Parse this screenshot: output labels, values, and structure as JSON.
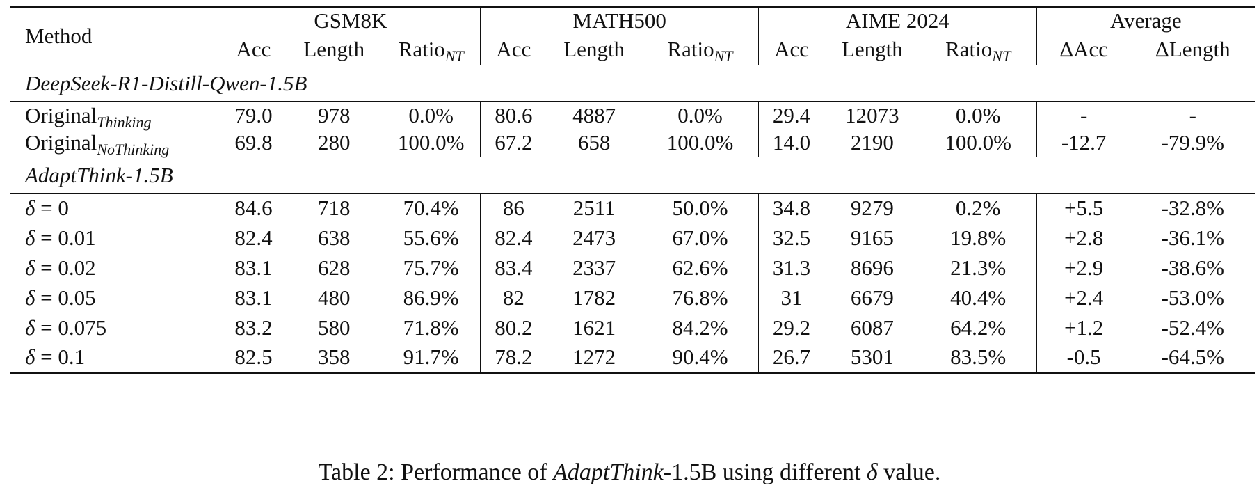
{
  "header": {
    "method_label": "Method",
    "groups": [
      "GSM8K",
      "MATH500",
      "AIME 2024",
      "Average"
    ],
    "acc": "Acc",
    "length": "Length",
    "ratio": "Ratio",
    "ratio_sub": "NT",
    "delta_acc": "ΔAcc",
    "delta_length": "ΔLength"
  },
  "sections": [
    {
      "title": "DeepSeek-R1-Distill-Qwen-1.5B",
      "rows": [
        {
          "label": "Original",
          "sub": "Thinking",
          "values": [
            "79.0",
            "978",
            "0.0%",
            "80.6",
            "4887",
            "0.0%",
            "29.4",
            "12073",
            "0.0%",
            "-",
            "-"
          ]
        },
        {
          "label": "Original",
          "sub": "NoThinking",
          "values": [
            "69.8",
            "280",
            "100.0%",
            "67.2",
            "658",
            "100.0%",
            "14.0",
            "2190",
            "100.0%",
            "-12.7",
            "-79.9%"
          ]
        }
      ]
    },
    {
      "title": "AdaptThink-1.5B",
      "rows": [
        {
          "delta": "δ",
          "eq": " = 0",
          "values": [
            "84.6",
            "718",
            "70.4%",
            "86",
            "2511",
            "50.0%",
            "34.8",
            "9279",
            "0.2%",
            "+5.5",
            "-32.8%"
          ]
        },
        {
          "delta": "δ",
          "eq": " = 0.01",
          "values": [
            "82.4",
            "638",
            "55.6%",
            "82.4",
            "2473",
            "67.0%",
            "32.5",
            "9165",
            "19.8%",
            "+2.8",
            "-36.1%"
          ]
        },
        {
          "delta": "δ",
          "eq": " = 0.02",
          "values": [
            "83.1",
            "628",
            "75.7%",
            "83.4",
            "2337",
            "62.6%",
            "31.3",
            "8696",
            "21.3%",
            "+2.9",
            "-38.6%"
          ]
        },
        {
          "delta": "δ",
          "eq": " = 0.05",
          "values": [
            "83.1",
            "480",
            "86.9%",
            "82",
            "1782",
            "76.8%",
            "31",
            "6679",
            "40.4%",
            "+2.4",
            "-53.0%"
          ]
        },
        {
          "delta": "δ",
          "eq": " = 0.075",
          "values": [
            "83.2",
            "580",
            "71.8%",
            "80.2",
            "1621",
            "84.2%",
            "29.2",
            "6087",
            "64.2%",
            "+1.2",
            "-52.4%"
          ]
        },
        {
          "delta": "δ",
          "eq": " = 0.1",
          "values": [
            "82.5",
            "358",
            "91.7%",
            "78.2",
            "1272",
            "90.4%",
            "26.7",
            "5301",
            "83.5%",
            "-0.5",
            "-64.5%"
          ]
        }
      ]
    }
  ],
  "caption": {
    "prefix": "Table 2: Performance of ",
    "model_italic": "AdaptThink",
    "model_rest": "-1.5B using different ",
    "symbol": "δ",
    "suffix": " value."
  }
}
